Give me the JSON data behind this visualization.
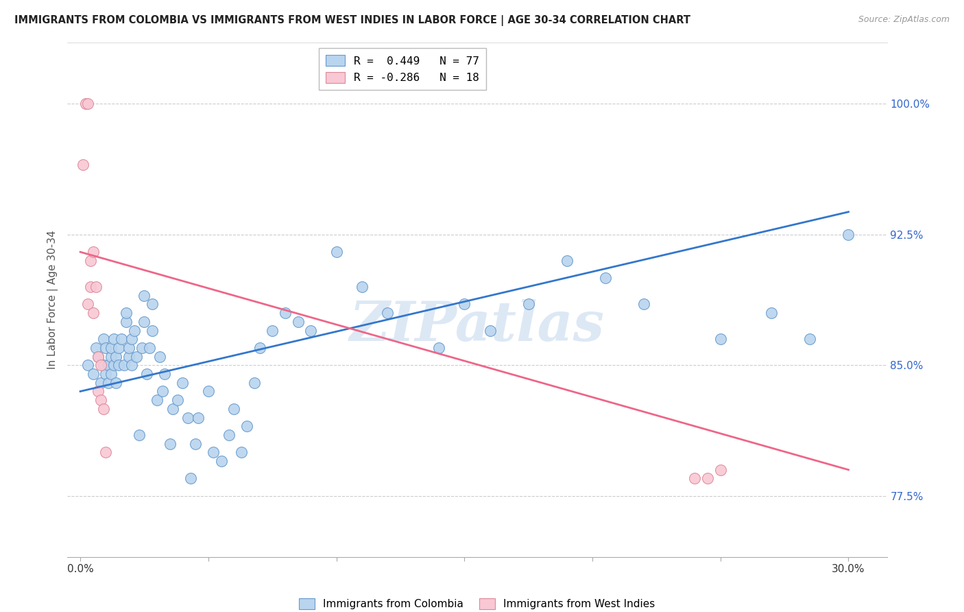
{
  "title": "IMMIGRANTS FROM COLOMBIA VS IMMIGRANTS FROM WEST INDIES IN LABOR FORCE | AGE 30-34 CORRELATION CHART",
  "source": "Source: ZipAtlas.com",
  "ylabel": "In Labor Force | Age 30-34",
  "y_ticks": [
    77.5,
    85.0,
    92.5,
    100.0
  ],
  "y_tick_labels": [
    "77.5%",
    "85.0%",
    "92.5%",
    "100.0%"
  ],
  "x_ticks": [
    0.0,
    0.05,
    0.1,
    0.15,
    0.2,
    0.25,
    0.3
  ],
  "xlim": [
    -0.005,
    0.315
  ],
  "ylim": [
    74.0,
    103.5
  ],
  "watermark": "ZIPatlas",
  "colombia_color": "#b8d4ee",
  "colombia_edge": "#6699cc",
  "westindies_color": "#f8c8d4",
  "westindies_edge": "#dd8899",
  "colombia_points_x": [
    0.003,
    0.005,
    0.006,
    0.007,
    0.008,
    0.009,
    0.009,
    0.01,
    0.01,
    0.011,
    0.011,
    0.012,
    0.012,
    0.012,
    0.013,
    0.013,
    0.014,
    0.014,
    0.015,
    0.015,
    0.016,
    0.017,
    0.018,
    0.018,
    0.019,
    0.019,
    0.02,
    0.02,
    0.021,
    0.022,
    0.023,
    0.024,
    0.025,
    0.025,
    0.026,
    0.027,
    0.028,
    0.028,
    0.03,
    0.031,
    0.032,
    0.033,
    0.035,
    0.036,
    0.038,
    0.04,
    0.042,
    0.043,
    0.045,
    0.046,
    0.05,
    0.052,
    0.055,
    0.058,
    0.06,
    0.063,
    0.065,
    0.068,
    0.07,
    0.075,
    0.08,
    0.085,
    0.09,
    0.1,
    0.11,
    0.12,
    0.14,
    0.15,
    0.16,
    0.175,
    0.19,
    0.205,
    0.22,
    0.25,
    0.27,
    0.285,
    0.3
  ],
  "colombia_points_y": [
    85.0,
    84.5,
    86.0,
    85.5,
    84.0,
    86.5,
    85.0,
    84.5,
    86.0,
    85.0,
    84.0,
    85.5,
    86.0,
    84.5,
    85.0,
    86.5,
    84.0,
    85.5,
    85.0,
    86.0,
    86.5,
    85.0,
    87.5,
    88.0,
    85.5,
    86.0,
    85.0,
    86.5,
    87.0,
    85.5,
    81.0,
    86.0,
    87.5,
    89.0,
    84.5,
    86.0,
    87.0,
    88.5,
    83.0,
    85.5,
    83.5,
    84.5,
    80.5,
    82.5,
    83.0,
    84.0,
    82.0,
    78.5,
    80.5,
    82.0,
    83.5,
    80.0,
    79.5,
    81.0,
    82.5,
    80.0,
    81.5,
    84.0,
    86.0,
    87.0,
    88.0,
    87.5,
    87.0,
    91.5,
    89.5,
    88.0,
    86.0,
    88.5,
    87.0,
    88.5,
    91.0,
    90.0,
    88.5,
    86.5,
    88.0,
    86.5,
    92.5
  ],
  "westindies_points_x": [
    0.001,
    0.002,
    0.003,
    0.003,
    0.004,
    0.004,
    0.005,
    0.005,
    0.006,
    0.007,
    0.007,
    0.008,
    0.008,
    0.009,
    0.01,
    0.24,
    0.245,
    0.25
  ],
  "westindies_points_y": [
    96.5,
    100.0,
    100.0,
    88.5,
    91.0,
    89.5,
    91.5,
    88.0,
    89.5,
    83.5,
    85.5,
    85.0,
    83.0,
    82.5,
    80.0,
    78.5,
    78.5,
    79.0
  ],
  "colombia_line_x": [
    0.0,
    0.3
  ],
  "colombia_line_y": [
    83.5,
    93.8
  ],
  "westindies_line_x": [
    0.0,
    0.3
  ],
  "westindies_line_y": [
    91.5,
    79.0
  ],
  "legend_blue_label": "R =  0.449   N = 77",
  "legend_pink_label": "R = -0.286   N = 18",
  "bottom_label_colombia": "Immigrants from Colombia",
  "bottom_label_westindies": "Immigrants from West Indies"
}
